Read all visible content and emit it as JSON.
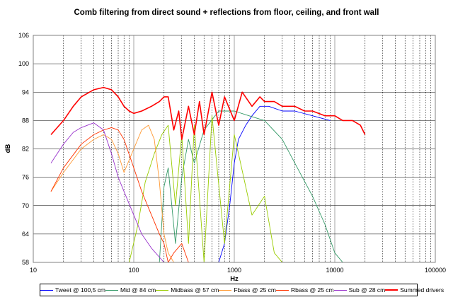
{
  "chart_data": {
    "type": "line",
    "title": "Comb filtering from direct sound + reflections from floor, ceiling, and front wall",
    "xlabel": "Hz",
    "ylabel": "dB",
    "xscale": "log",
    "xlim": [
      10,
      100000
    ],
    "ylim": [
      58,
      106
    ],
    "x_tick_labels": [
      "10",
      "100",
      "1000",
      "10000",
      "100000"
    ],
    "y_tick_labels": [
      "106",
      "100",
      "94",
      "88",
      "82",
      "76",
      "70",
      "64",
      "58"
    ],
    "grid": "vertical dotted at log minor ticks, horizontal solid every 6 dB",
    "legend_position": "bottom",
    "series": [
      {
        "name": "Tweet @ 100,5 cm",
        "color": "#0000ff",
        "x": [
          700,
          800,
          900,
          1000,
          1100,
          1300,
          1500,
          1800,
          2200,
          3000,
          4000,
          6000,
          9000
        ],
        "y": [
          58,
          62,
          70,
          79,
          84,
          87,
          89,
          91,
          91,
          90,
          90,
          89,
          88
        ]
      },
      {
        "name": "Mid @ 84 cm",
        "color": "#339966",
        "x": [
          180,
          200,
          220,
          260,
          300,
          350,
          400,
          500,
          700,
          1000,
          1400,
          2000,
          3000,
          4000,
          6000,
          8000,
          10000,
          12000
        ],
        "y": [
          58,
          74,
          78,
          62,
          76,
          84,
          79,
          86,
          90,
          90,
          89,
          88,
          84,
          79,
          72,
          66,
          60,
          58
        ]
      },
      {
        "name": "Midbass @ 57 cm",
        "color": "#99cc00",
        "x": [
          90,
          110,
          130,
          160,
          190,
          220,
          260,
          300,
          350,
          400,
          500,
          600,
          800,
          1000,
          1500,
          2000,
          2500,
          3000
        ],
        "y": [
          58,
          66,
          75,
          81,
          85,
          87,
          70,
          85,
          62,
          87,
          58,
          89,
          62,
          85,
          68,
          72,
          60,
          58
        ]
      },
      {
        "name": "Fbass @ 25 cm",
        "color": "#ff9933",
        "x": [
          15,
          20,
          30,
          40,
          50,
          60,
          70,
          80,
          100,
          120,
          140,
          160,
          180,
          200,
          220,
          250
        ],
        "y": [
          73,
          77,
          82,
          84,
          85,
          84,
          81,
          77,
          82,
          86,
          87,
          84,
          75,
          64,
          60,
          58
        ]
      },
      {
        "name": "Rbass @ 25 cm",
        "color": "#ff3300",
        "x": [
          15,
          20,
          30,
          40,
          50,
          60,
          70,
          80,
          100,
          120,
          150,
          180,
          200,
          220,
          250,
          300,
          350
        ],
        "y": [
          73,
          78,
          83,
          85,
          86,
          86.5,
          86,
          84,
          78,
          73,
          68,
          64,
          62,
          58,
          60,
          62,
          58
        ]
      },
      {
        "name": "Sub @ 28 cm",
        "color": "#9933cc",
        "x": [
          15,
          20,
          25,
          30,
          40,
          50,
          60,
          70,
          80,
          100,
          120,
          150,
          200
        ],
        "y": [
          79,
          83,
          85.5,
          86.5,
          87.5,
          86,
          81,
          76,
          73,
          68,
          64,
          61,
          58
        ]
      },
      {
        "name": "Summed drivers",
        "color": "#ff0000",
        "x": [
          15,
          20,
          25,
          30,
          40,
          50,
          60,
          70,
          80,
          90,
          100,
          120,
          150,
          180,
          200,
          220,
          250,
          280,
          300,
          350,
          400,
          450,
          500,
          600,
          700,
          800,
          1000,
          1200,
          1500,
          1800,
          2000,
          2500,
          3000,
          4000,
          5000,
          6000,
          8000,
          10000,
          12000,
          15000,
          18000,
          20000
        ],
        "y": [
          85,
          88,
          91,
          93,
          94.5,
          95,
          94.5,
          93,
          91,
          90,
          89.5,
          90,
          91,
          92,
          93,
          93,
          86,
          90,
          84,
          91,
          85,
          92,
          85,
          94,
          87,
          93,
          88,
          94,
          91,
          93,
          92,
          92,
          91,
          91,
          90,
          90,
          89,
          89,
          88,
          88,
          87,
          85
        ]
      }
    ]
  }
}
